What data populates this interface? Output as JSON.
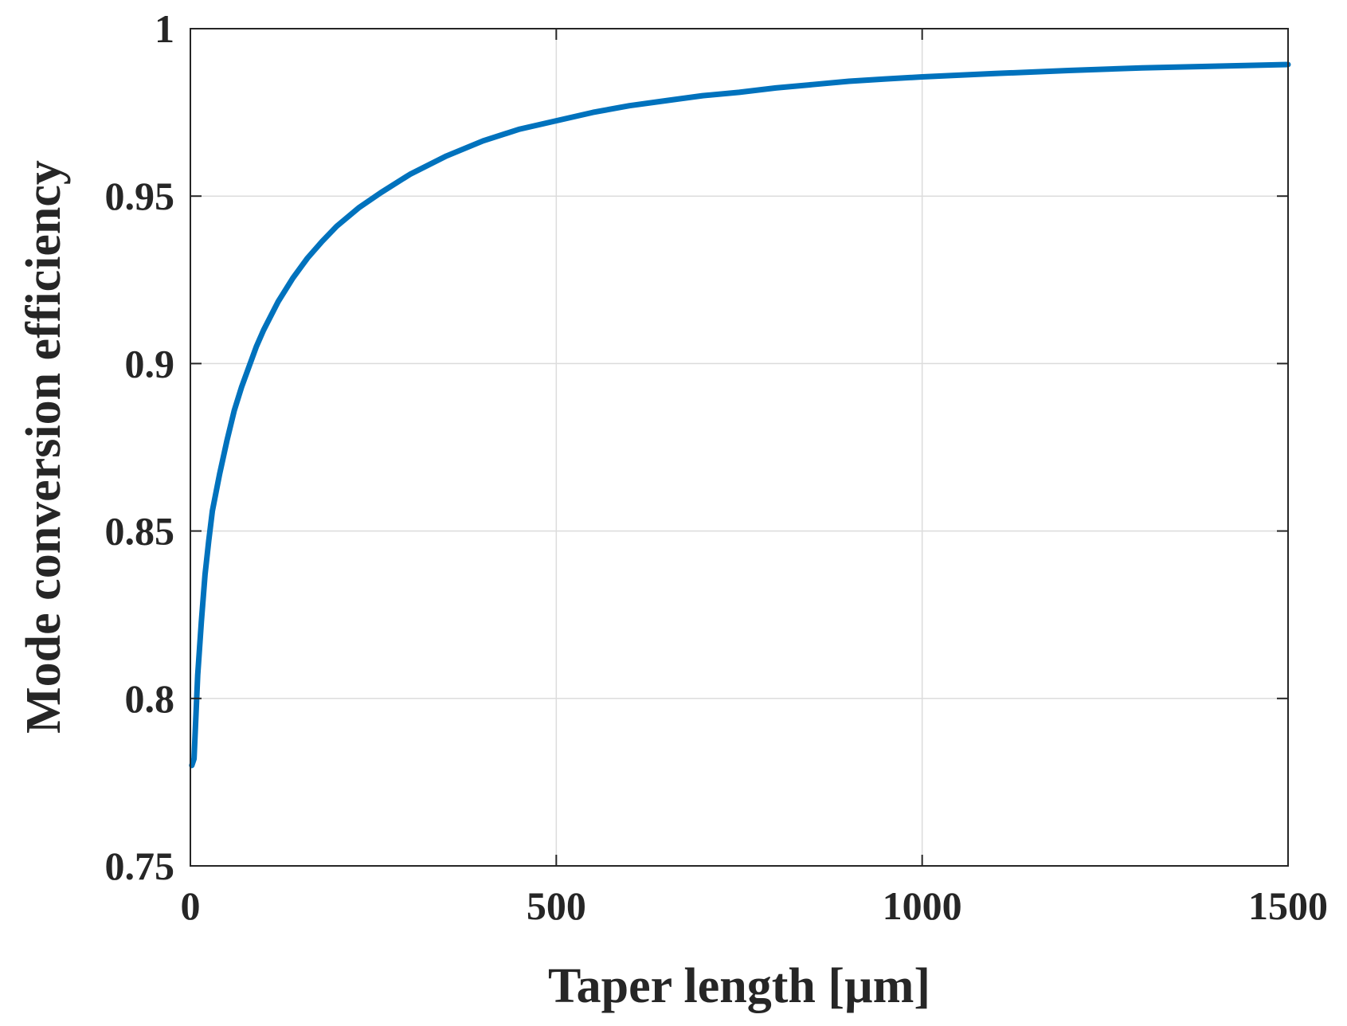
{
  "chart_data": {
    "type": "line",
    "title": "",
    "xlabel": "Taper length [µm]",
    "ylabel": "Mode conversion efficiency",
    "xlim": [
      0,
      1500
    ],
    "ylim": [
      0.75,
      1
    ],
    "xticks": [
      0,
      500,
      1000,
      1500
    ],
    "xtick_labels": [
      "0",
      "500",
      "1000",
      "1500"
    ],
    "yticks": [
      0.75,
      0.8,
      0.85,
      0.9,
      0.95,
      1
    ],
    "ytick_labels": [
      "0.75",
      "0.8",
      "0.85",
      "0.9",
      "0.95",
      "1"
    ],
    "grid": true,
    "series": [
      {
        "color": "#0072BD",
        "x": [
          2,
          5,
          10,
          15,
          20,
          25,
          30,
          40,
          50,
          60,
          70,
          80,
          90,
          100,
          120,
          140,
          160,
          180,
          200,
          230,
          260,
          300,
          350,
          400,
          450,
          500,
          550,
          600,
          650,
          700,
          750,
          800,
          850,
          900,
          950,
          1000,
          1100,
          1200,
          1300,
          1400,
          1500
        ],
        "y": [
          0.78,
          0.782,
          0.807,
          0.823,
          0.837,
          0.847,
          0.856,
          0.867,
          0.877,
          0.886,
          0.893,
          0.899,
          0.905,
          0.91,
          0.9185,
          0.9255,
          0.9315,
          0.9365,
          0.941,
          0.9465,
          0.951,
          0.9565,
          0.962,
          0.9665,
          0.97,
          0.9725,
          0.975,
          0.977,
          0.9785,
          0.98,
          0.981,
          0.9823,
          0.9833,
          0.9843,
          0.985,
          0.9856,
          0.9866,
          0.9875,
          0.9883,
          0.9888,
          0.9893
        ]
      }
    ]
  }
}
